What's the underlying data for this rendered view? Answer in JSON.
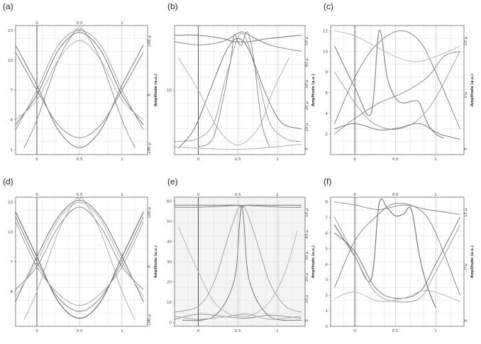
{
  "chart_data": [
    {
      "type": "line",
      "label": "(a)",
      "xticks": [
        "0",
        "0.5",
        "1"
      ],
      "yticks": [
        "1",
        "4",
        "7",
        "10",
        "13"
      ],
      "y2ticks": [
        "-100 µ",
        "0",
        "100 µ"
      ],
      "y2label": "Amplitude (a.u.)",
      "top_marks": [
        "0",
        "0.5",
        "1"
      ],
      "xlim": [
        -0.25,
        1.3
      ],
      "ylim": [
        0.5,
        13.5
      ],
      "style": {
        "background": "#ffffff",
        "curve_color": "#8a8a8a"
      },
      "series": [
        {
          "x": [
            -0.25,
            0.0,
            0.25,
            0.5,
            0.75,
            1.0,
            1.25
          ],
          "y": [
            11.5,
            7.5,
            3.0,
            1.2,
            3.0,
            7.5,
            11.5
          ]
        },
        {
          "x": [
            -0.25,
            0.0,
            0.25,
            0.5,
            0.75,
            1.0,
            1.25
          ],
          "y": [
            10.8,
            7.0,
            3.5,
            2.2,
            3.5,
            7.0,
            10.8
          ]
        },
        {
          "x": [
            -0.25,
            0.0,
            0.25,
            0.5,
            0.75,
            1.0,
            1.25
          ],
          "y": [
            3.0,
            7.0,
            11.5,
            13.0,
            11.5,
            7.0,
            3.0
          ]
        },
        {
          "x": [
            -0.25,
            0.0,
            0.25,
            0.5,
            0.75,
            1.0,
            1.25
          ],
          "y": [
            3.5,
            6.5,
            11.0,
            12.8,
            11.0,
            6.5,
            3.5
          ]
        },
        {
          "x": [
            -0.25,
            0.0,
            0.25,
            0.5,
            0.75,
            1.0,
            1.25
          ],
          "y": [
            4.0,
            6.0,
            10.0,
            12.0,
            10.0,
            6.0,
            4.0
          ]
        },
        {
          "x": [
            -0.15,
            0.0,
            0.25,
            0.45,
            0.5,
            0.55,
            0.75,
            1.0,
            1.15
          ],
          "y": [
            1.2,
            4.0,
            10.0,
            13.0,
            13.0,
            13.0,
            10.0,
            4.0,
            1.2
          ]
        }
      ]
    },
    {
      "type": "line",
      "label": "(b)",
      "xticks": [
        "0",
        "0.5",
        "1"
      ],
      "yticks": [
        "10"
      ],
      "y2ticks": [
        "0",
        "10 µ",
        "20 µ",
        "30 µ",
        "40 µ",
        "50 µ"
      ],
      "y2label": "Amplitude (a.u.)",
      "top_marks": [],
      "xlim": [
        -0.3,
        1.35
      ],
      "ylim": [
        0.0,
        20.0
      ],
      "style": {
        "background": "#ffffff",
        "curve_color": "#8a8a8a"
      },
      "series": [
        {
          "x": [
            -0.3,
            0.0,
            0.3,
            0.45,
            0.55,
            0.65,
            0.9,
            1.3
          ],
          "y": [
            18.5,
            18.5,
            18.0,
            17.5,
            17.5,
            17.5,
            18.0,
            18.5
          ]
        },
        {
          "x": [
            -0.3,
            0.0,
            0.3,
            0.5,
            0.55,
            0.6,
            0.9,
            1.3
          ],
          "y": [
            17.5,
            17.0,
            17.5,
            18.8,
            19.0,
            18.8,
            17.0,
            16.0
          ]
        },
        {
          "x": [
            -0.3,
            0.0,
            0.2,
            0.35,
            0.55,
            0.75,
            0.9,
            1.1,
            1.3
          ],
          "y": [
            2.0,
            2.5,
            5.0,
            12.0,
            18.8,
            12.0,
            5.0,
            2.5,
            2.0
          ]
        },
        {
          "x": [
            -0.25,
            -0.05,
            0.15,
            0.35,
            0.5,
            0.65,
            0.85,
            1.05,
            1.3
          ],
          "y": [
            1.0,
            4.0,
            10.0,
            16.0,
            18.0,
            16.0,
            9.5,
            5.0,
            4.0
          ]
        },
        {
          "x": [
            -0.25,
            0.0,
            0.2,
            0.35,
            0.5,
            0.65,
            0.8,
            0.95,
            1.15
          ],
          "y": [
            15.0,
            10.0,
            5.0,
            2.5,
            1.5,
            2.5,
            5.0,
            10.0,
            15.0
          ]
        },
        {
          "x": [
            0.0,
            0.2,
            0.4,
            0.45,
            0.5,
            0.55,
            0.62,
            0.7,
            0.8,
            0.9
          ],
          "y": [
            1.2,
            3.0,
            14.0,
            18.5,
            17.5,
            17.0,
            19.0,
            15.0,
            5.0,
            1.2
          ]
        },
        {
          "x": [
            -0.3,
            0.0,
            0.4,
            0.8,
            1.3
          ],
          "y": [
            1.2,
            1.0,
            0.8,
            1.0,
            1.6
          ]
        }
      ]
    },
    {
      "type": "line",
      "label": "(c)",
      "xticks": [
        "0",
        "0.5",
        "1"
      ],
      "yticks": [
        "2",
        "4",
        "6",
        "8",
        "10",
        "12"
      ],
      "y2ticks": [
        "0",
        "5 µ",
        "10 µ"
      ],
      "y2label": "Amplitude (a.u.)",
      "top_marks": [],
      "xlim": [
        -0.3,
        1.35
      ],
      "ylim": [
        0.0,
        12.5
      ],
      "style": {
        "background": "#ffffff",
        "curve_color": "#8a8a8a"
      },
      "series": [
        {
          "x": [
            -0.25,
            0.0,
            0.2,
            0.3,
            0.4,
            0.5,
            0.6,
            0.72,
            0.8,
            0.9,
            1.0,
            1.1
          ],
          "y": [
            10.5,
            6.5,
            4.0,
            12.0,
            7.5,
            5.5,
            5.0,
            5.2,
            5.0,
            3.0,
            2.0,
            1.6
          ]
        },
        {
          "x": [
            -0.25,
            0.0,
            0.25,
            0.55,
            0.8,
            1.0,
            1.3
          ],
          "y": [
            3.0,
            7.5,
            10.5,
            12.0,
            11.0,
            8.0,
            2.5
          ]
        },
        {
          "x": [
            -0.25,
            0.0,
            0.2,
            0.4,
            0.6,
            0.8,
            1.0,
            1.3
          ],
          "y": [
            8.0,
            5.0,
            3.2,
            2.5,
            2.6,
            3.5,
            5.5,
            10.0
          ]
        },
        {
          "x": [
            -0.25,
            0.0,
            0.3,
            0.55,
            0.8,
            1.05,
            1.3
          ],
          "y": [
            2.5,
            3.0,
            2.4,
            2.6,
            3.0,
            2.0,
            1.5
          ]
        },
        {
          "x": [
            -0.25,
            0.0,
            0.25,
            0.5,
            0.75,
            1.0,
            1.3
          ],
          "y": [
            12.0,
            11.5,
            10.5,
            9.5,
            9.0,
            9.5,
            10.5
          ]
        },
        {
          "x": [
            -0.25,
            0.0,
            0.3,
            0.6,
            0.9,
            1.1,
            1.3
          ],
          "y": [
            2.0,
            3.5,
            5.0,
            6.0,
            7.5,
            9.5,
            10.0
          ]
        }
      ]
    },
    {
      "type": "line",
      "label": "(d)",
      "xticks": [
        "0",
        "0.5",
        "1"
      ],
      "yticks": [
        "4",
        "7",
        "10",
        "13"
      ],
      "y2ticks": [
        "-100 µ",
        "0",
        "100 µ"
      ],
      "y2label": "Amplitude (a.u.)",
      "top_marks": [
        "0",
        "0.5",
        "1"
      ],
      "xlim": [
        -0.25,
        1.3
      ],
      "ylim": [
        0.5,
        13.5
      ],
      "style": {
        "background": "#ffffff",
        "curve_color": "#6f6f6f"
      },
      "series": [
        {
          "x": [
            -0.25,
            0.0,
            0.25,
            0.5,
            0.75,
            1.0,
            1.25
          ],
          "y": [
            12.0,
            7.5,
            3.0,
            1.3,
            3.0,
            7.5,
            12.0
          ]
        },
        {
          "x": [
            -0.25,
            0.0,
            0.25,
            0.5,
            0.75,
            1.0,
            1.25
          ],
          "y": [
            11.5,
            7.0,
            3.4,
            2.0,
            3.4,
            7.0,
            11.5
          ]
        },
        {
          "x": [
            -0.25,
            0.0,
            0.25,
            0.5,
            0.75,
            1.0,
            1.25
          ],
          "y": [
            11.0,
            6.5,
            3.8,
            2.6,
            3.8,
            6.5,
            11.0
          ]
        },
        {
          "x": [
            -0.25,
            0.0,
            0.25,
            0.5,
            0.75,
            1.0,
            1.25
          ],
          "y": [
            3.0,
            7.5,
            11.5,
            13.2,
            11.5,
            7.5,
            3.0
          ]
        },
        {
          "x": [
            -0.25,
            0.0,
            0.25,
            0.5,
            0.75,
            1.0,
            1.25
          ],
          "y": [
            3.5,
            7.0,
            11.2,
            13.0,
            11.2,
            7.0,
            3.5
          ]
        },
        {
          "x": [
            -0.25,
            0.0,
            0.25,
            0.5,
            0.75,
            1.0,
            1.25
          ],
          "y": [
            4.2,
            6.5,
            10.5,
            12.5,
            10.5,
            6.5,
            4.2
          ]
        },
        {
          "x": [
            -0.15,
            0.0,
            0.25,
            0.45,
            0.5,
            0.55,
            0.75,
            1.0,
            1.15
          ],
          "y": [
            1.2,
            4.0,
            10.0,
            13.2,
            13.3,
            13.2,
            10.0,
            4.0,
            1.2
          ]
        }
      ]
    },
    {
      "type": "line",
      "label": "(e)",
      "xticks": [
        "0",
        "0.5",
        "1"
      ],
      "yticks": [
        "0",
        "10",
        "20",
        "30",
        "40",
        "50",
        "60"
      ],
      "y2ticks": [
        "0",
        "10 µ",
        "20 µ",
        "30 µ",
        "40 µ",
        "50 µ"
      ],
      "y2label": "Amplitude (a.u.)",
      "top_marks": [
        "0",
        "0.5",
        "1"
      ],
      "xlim": [
        -0.3,
        1.35
      ],
      "ylim": [
        -2.0,
        62.0
      ],
      "style": {
        "background": "#f4f4f4",
        "curve_color": "#8a8a8a"
      },
      "series": [
        {
          "x": [
            -0.3,
            0.0,
            0.3,
            0.5,
            0.55,
            0.6,
            0.8,
            1.0,
            1.3
          ],
          "y": [
            58.0,
            58.0,
            58.0,
            58.0,
            57.0,
            58.0,
            58.0,
            58.0,
            58.0
          ]
        },
        {
          "x": [
            -0.3,
            0.0,
            0.3,
            0.55,
            0.8,
            1.1,
            1.3
          ],
          "y": [
            57.0,
            57.0,
            57.5,
            58.0,
            57.5,
            57.0,
            57.0
          ]
        },
        {
          "x": [
            -0.3,
            0.0,
            0.2,
            0.4,
            0.55,
            0.7,
            0.9,
            1.1,
            1.3
          ],
          "y": [
            5.0,
            8.0,
            20.0,
            45.0,
            58.0,
            45.0,
            20.0,
            8.0,
            5.0
          ]
        },
        {
          "x": [
            -0.2,
            0.2,
            0.45,
            0.52,
            0.55,
            0.58,
            0.65,
            0.9,
            1.3
          ],
          "y": [
            1.0,
            3.0,
            20.0,
            48.0,
            58.0,
            48.0,
            20.0,
            3.0,
            1.0
          ]
        },
        {
          "x": [
            -0.25,
            0.0,
            0.2,
            0.4,
            0.55,
            0.7,
            0.9,
            1.1,
            1.25
          ],
          "y": [
            47.0,
            25.0,
            10.0,
            4.0,
            3.0,
            4.0,
            10.0,
            25.0,
            45.0
          ]
        },
        {
          "x": [
            -0.3,
            0.0,
            0.3,
            0.6,
            0.9,
            1.3
          ],
          "y": [
            1.5,
            4.0,
            3.0,
            2.0,
            3.5,
            2.0
          ]
        },
        {
          "x": [
            -0.3,
            0.0,
            0.3,
            0.6,
            0.9,
            1.3
          ],
          "y": [
            3.0,
            1.5,
            2.5,
            4.0,
            1.5,
            3.0
          ]
        }
      ]
    },
    {
      "type": "line",
      "label": "(f)",
      "xticks": [
        "0",
        "0.5",
        "1"
      ],
      "yticks": [
        "0",
        "1",
        "2",
        "3",
        "4",
        "5",
        "6",
        "7",
        "8"
      ],
      "y2ticks": [
        "0",
        "5 µ",
        "10 µ"
      ],
      "y2label": "Amplitude (a.u.)",
      "top_marks": [
        "0",
        "0.5",
        "1"
      ],
      "xlim": [
        -0.3,
        1.35
      ],
      "ylim": [
        0.0,
        8.3
      ],
      "style": {
        "background": "#ffffff",
        "curve_color": "#7a7a7a"
      },
      "series": [
        {
          "x": [
            -0.25,
            0.0,
            0.2,
            0.3,
            0.4,
            0.5,
            0.6,
            0.7,
            0.8,
            0.9,
            1.0
          ],
          "y": [
            6.5,
            4.5,
            3.0,
            7.9,
            7.6,
            7.1,
            7.2,
            7.5,
            4.5,
            2.5,
            1.2
          ]
        },
        {
          "x": [
            -0.25,
            0.0,
            0.25,
            0.5,
            0.8,
            1.0,
            1.3
          ],
          "y": [
            2.5,
            5.5,
            7.0,
            7.9,
            7.5,
            6.0,
            2.0
          ]
        },
        {
          "x": [
            -0.25,
            0.0,
            0.25,
            0.5,
            0.8,
            1.0,
            1.3
          ],
          "y": [
            7.0,
            4.5,
            2.2,
            1.6,
            1.8,
            3.5,
            6.5
          ]
        },
        {
          "x": [
            -0.25,
            0.0,
            0.25,
            0.5,
            0.8,
            1.0,
            1.3
          ],
          "y": [
            6.0,
            4.8,
            2.5,
            1.8,
            2.2,
            4.0,
            7.0
          ]
        },
        {
          "x": [
            -0.25,
            0.0,
            0.3,
            0.6,
            0.9,
            1.3
          ],
          "y": [
            1.8,
            2.2,
            1.6,
            1.8,
            2.3,
            1.6
          ]
        },
        {
          "x": [
            -0.25,
            0.0,
            0.3,
            0.6,
            0.9,
            1.3
          ],
          "y": [
            8.0,
            7.8,
            7.5,
            7.8,
            7.5,
            7.2
          ]
        }
      ]
    }
  ]
}
